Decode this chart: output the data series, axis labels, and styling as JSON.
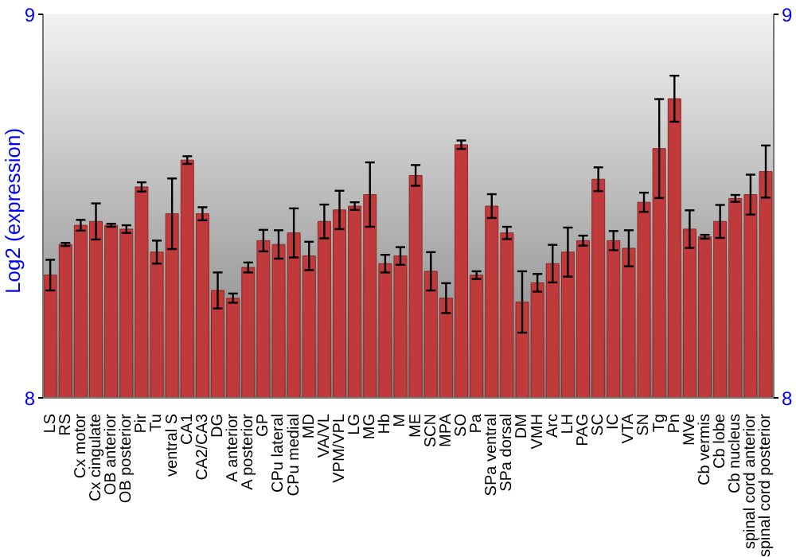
{
  "chart_data": {
    "type": "bar",
    "ylabel": "Log2 (expression)",
    "categories": [
      "LS",
      "RS",
      "Cx motor",
      "Cx cingulate",
      "OB anterior",
      "OB posterior",
      "Pir",
      "Tu",
      "ventral S",
      "CA1",
      "CA2/CA3",
      "DG",
      "A anterior",
      "A posterior",
      "GP",
      "CPu lateral",
      "CPu medial",
      "MD",
      "VA/VL",
      "VPM/VPL",
      "LG",
      "MG",
      "Hb",
      "M",
      "ME",
      "SCN",
      "MPA",
      "SO",
      "Pa",
      "SPa ventral",
      "SPa dorsal",
      "DM",
      "VMH",
      "Arc",
      "LH",
      "PAG",
      "SC",
      "IC",
      "VTA",
      "SN",
      "Tg",
      "Pn",
      "MVe",
      "Cb vermis",
      "Cb lobe",
      "Cb nucleus",
      "spinal cord anterior",
      "spinal cord posterior"
    ],
    "values": [
      8.32,
      8.4,
      8.45,
      8.46,
      8.45,
      8.44,
      8.55,
      8.38,
      8.48,
      8.62,
      8.48,
      8.28,
      8.26,
      8.34,
      8.41,
      8.4,
      8.43,
      8.37,
      8.46,
      8.49,
      8.5,
      8.53,
      8.35,
      8.37,
      8.58,
      8.33,
      8.26,
      8.66,
      8.32,
      8.5,
      8.43,
      8.25,
      8.3,
      8.35,
      8.38,
      8.41,
      8.57,
      8.41,
      8.39,
      8.51,
      8.65,
      8.78,
      8.44,
      8.42,
      8.46,
      8.52,
      8.53,
      8.59
    ],
    "errors": [
      0.04,
      0.004,
      0.014,
      0.047,
      0.004,
      0.01,
      0.012,
      0.03,
      0.092,
      0.01,
      0.017,
      0.047,
      0.012,
      0.013,
      0.028,
      0.037,
      0.064,
      0.037,
      0.044,
      0.05,
      0.01,
      0.084,
      0.023,
      0.023,
      0.027,
      0.05,
      0.039,
      0.011,
      0.01,
      0.031,
      0.016,
      0.08,
      0.023,
      0.049,
      0.064,
      0.013,
      0.031,
      0.025,
      0.047,
      0.025,
      0.129,
      0.06,
      0.049,
      0.005,
      0.043,
      0.009,
      0.052,
      0.068
    ],
    "color": "#c0393b",
    "ylim": [
      8,
      9
    ],
    "yticks": [
      8,
      9
    ],
    "y2lim": [
      8,
      9
    ],
    "y2ticks": [
      8,
      9
    ],
    "grid": false
  }
}
